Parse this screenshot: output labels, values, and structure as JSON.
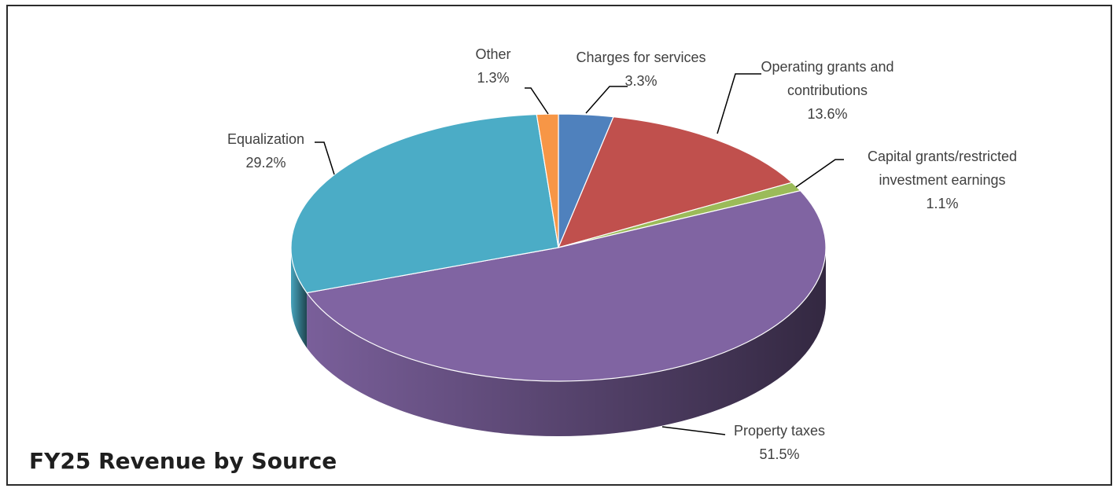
{
  "chart_data": {
    "type": "pie",
    "title": "FY25 Revenue by Source",
    "categories": [
      "Charges for services",
      "Operating grants and contributions",
      "Capital grants/restricted investment earnings",
      "Property taxes",
      "Equalization",
      "Other"
    ],
    "values": [
      3.3,
      13.6,
      1.1,
      51.5,
      29.2,
      1.3
    ],
    "value_labels": [
      "3.3%",
      "13.6%",
      "1.1%",
      "51.5%",
      "29.2%",
      "1.3%"
    ],
    "label_lines": [
      [
        "Charges for services"
      ],
      [
        "Operating grants and",
        "contributions"
      ],
      [
        "Capital grants/restricted",
        "investment earnings"
      ],
      [
        "Property taxes"
      ],
      [
        "Equalization"
      ],
      [
        "Other"
      ]
    ],
    "colors": [
      "#4f81bd",
      "#c0504d",
      "#9bbb59",
      "#8064a2",
      "#4bacc6",
      "#f79646"
    ],
    "style": "3d",
    "legend": "none"
  }
}
